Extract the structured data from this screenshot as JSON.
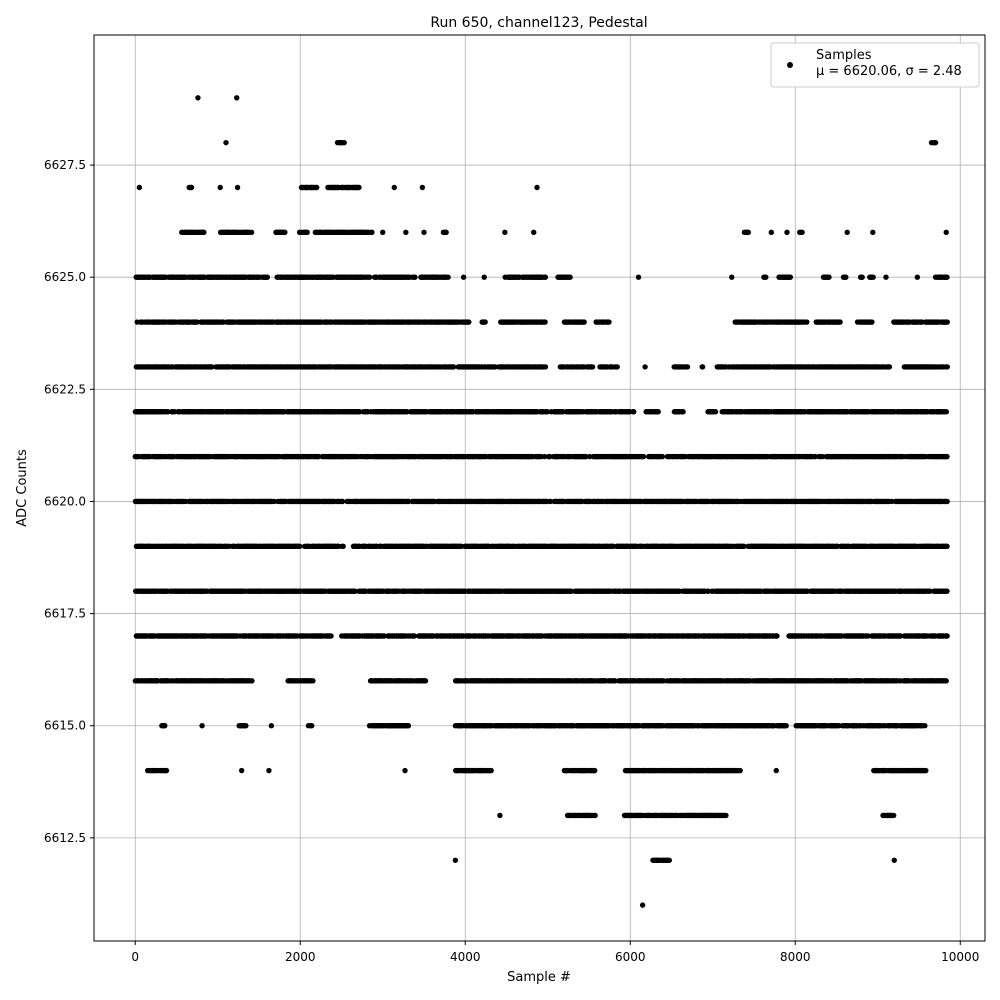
{
  "chart_data": {
    "type": "scatter",
    "title": "Run 650, channel123, Pedestal",
    "xlabel": "Sample #",
    "ylabel": "ADC Counts",
    "xlim": [
      -500,
      10300
    ],
    "ylim": [
      6610.2,
      6630.4
    ],
    "x_ticks": [
      0,
      2000,
      4000,
      6000,
      8000,
      10000
    ],
    "y_ticks": [
      6612.5,
      6615.0,
      6617.5,
      6620.0,
      6622.5,
      6625.0,
      6627.5
    ],
    "x_tick_labels": [
      "0",
      "2000",
      "4000",
      "6000",
      "8000",
      "10000"
    ],
    "y_tick_labels": [
      "6612.5",
      "6615.0",
      "6617.5",
      "6620.0",
      "6622.5",
      "6625.0",
      "6627.5"
    ],
    "grid": true,
    "legend_position": "top-right",
    "marker_color": "#000000",
    "series": [
      {
        "name": "Samples",
        "stats_label": "μ = 6620.06, σ = 2.48",
        "approximate_level_ranges": [
          {
            "y": 6629,
            "x_ranges": [
              [
                760,
                760
              ],
              [
                1230,
                1230
              ]
            ]
          },
          {
            "y": 6628,
            "x_ranges": [
              [
                1100,
                1100
              ],
              [
                2440,
                2540
              ],
              [
                9650,
                9720
              ]
            ]
          },
          {
            "y": 6627,
            "x_ranges": [
              [
                50,
                50
              ],
              [
                650,
                690
              ],
              [
                1030,
                1030
              ],
              [
                1240,
                1240
              ],
              [
                2010,
                2220
              ],
              [
                2330,
                2720
              ],
              [
                3140,
                3140
              ],
              [
                3480,
                3480
              ],
              [
                4870,
                4870
              ]
            ]
          },
          {
            "y": 6626,
            "x_ranges": [
              [
                560,
                840
              ],
              [
                1030,
                1420
              ],
              [
                1700,
                1820
              ],
              [
                1990,
                2090
              ],
              [
                2180,
                2890
              ],
              [
                3000,
                3000
              ],
              [
                3280,
                3280
              ],
              [
                3500,
                3500
              ],
              [
                3720,
                3780
              ],
              [
                4480,
                4480
              ],
              [
                4830,
                4830
              ],
              [
                7370,
                7440
              ],
              [
                7710,
                7710
              ],
              [
                7900,
                7900
              ],
              [
                8050,
                8090
              ],
              [
                8630,
                8630
              ],
              [
                8940,
                8940
              ],
              [
                9830,
                9830
              ]
            ]
          },
          {
            "y": 6625,
            "x_ranges": [
              [
                0,
                840
              ],
              [
                840,
                1610
              ],
              [
                1720,
                2850
              ],
              [
                2900,
                3400
              ],
              [
                3460,
                3800
              ],
              [
                3980,
                3980
              ],
              [
                4230,
                4230
              ],
              [
                4480,
                4980
              ],
              [
                5110,
                5280
              ],
              [
                6100,
                6100
              ],
              [
                7230,
                7230
              ],
              [
                7620,
                7650
              ],
              [
                7800,
                7950
              ],
              [
                8340,
                8420
              ],
              [
                8580,
                8620
              ],
              [
                8790,
                8820
              ],
              [
                8900,
                8950
              ],
              [
                9100,
                9100
              ],
              [
                9480,
                9480
              ],
              [
                9700,
                9850
              ]
            ]
          },
          {
            "y": 6624,
            "x_ranges": [
              [
                20,
                4050
              ],
              [
                4200,
                4250
              ],
              [
                4430,
                4990
              ],
              [
                5200,
                5450
              ],
              [
                5550,
                5750
              ],
              [
                7270,
                8150
              ],
              [
                8250,
                8550
              ],
              [
                8750,
                8950
              ],
              [
                9180,
                9850
              ]
            ]
          },
          {
            "y": 6623,
            "x_ranges": [
              [
                0,
                4980
              ],
              [
                5150,
                5550
              ],
              [
                5630,
                5850
              ],
              [
                6180,
                6180
              ],
              [
                6530,
                6700
              ],
              [
                6870,
                6880
              ],
              [
                7050,
                9150
              ],
              [
                9320,
                9850
              ]
            ]
          },
          {
            "y": 6622,
            "x_ranges": [
              [
                0,
                6050
              ],
              [
                6180,
                6350
              ],
              [
                6530,
                6650
              ],
              [
                6930,
                7050
              ],
              [
                7100,
                9850
              ]
            ]
          },
          {
            "y": 6621,
            "x_ranges": [
              [
                0,
                5530
              ],
              [
                5550,
                6400
              ],
              [
                6450,
                9850
              ]
            ]
          },
          {
            "y": 6620,
            "x_ranges": [
              [
                0,
                9850
              ]
            ]
          },
          {
            "y": 6619,
            "x_ranges": [
              [
                0,
                2000
              ],
              [
                2050,
                2530
              ],
              [
                2640,
                9850
              ]
            ]
          },
          {
            "y": 6618,
            "x_ranges": [
              [
                0,
                9850
              ]
            ]
          },
          {
            "y": 6617,
            "x_ranges": [
              [
                0,
                2380
              ],
              [
                2500,
                7800
              ],
              [
                7920,
                9850
              ]
            ]
          },
          {
            "y": 6616,
            "x_ranges": [
              [
                0,
                1420
              ],
              [
                1840,
                2160
              ],
              [
                2850,
                3550
              ],
              [
                3880,
                9850
              ]
            ]
          },
          {
            "y": 6615,
            "x_ranges": [
              [
                320,
                380
              ],
              [
                810,
                810
              ],
              [
                1260,
                1350
              ],
              [
                1650,
                1650
              ],
              [
                2100,
                2160
              ],
              [
                2840,
                3320
              ],
              [
                3880,
                7900
              ],
              [
                8010,
                9580
              ]
            ]
          },
          {
            "y": 6614,
            "x_ranges": [
              [
                150,
                400
              ],
              [
                1290,
                1290
              ],
              [
                1620,
                1620
              ],
              [
                3270,
                3270
              ],
              [
                3880,
                4320
              ],
              [
                5200,
                5580
              ],
              [
                5930,
                7340
              ],
              [
                7770,
                7770
              ],
              [
                8950,
                9600
              ]
            ]
          },
          {
            "y": 6613,
            "x_ranges": [
              [
                4420,
                4420
              ],
              [
                5240,
                5580
              ],
              [
                5930,
                7180
              ],
              [
                9050,
                9200
              ]
            ]
          },
          {
            "y": 6612,
            "x_ranges": [
              [
                3880,
                3880
              ],
              [
                6270,
                6480
              ],
              [
                9200,
                9200
              ]
            ]
          },
          {
            "y": 6611,
            "x_ranges": [
              [
                6150,
                6150
              ]
            ]
          }
        ]
      }
    ]
  }
}
